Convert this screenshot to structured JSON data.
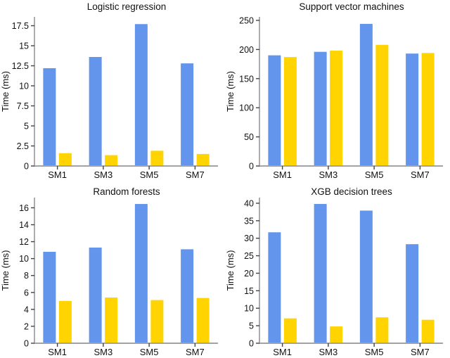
{
  "figure": {
    "background": "#ffffff",
    "axis_color": "#a3a3a3",
    "tick_color": "#444444",
    "text_color": "#111111",
    "series_colors": {
      "blue": "#6495ED",
      "yellow": "#FFD400"
    }
  },
  "chart_data": [
    {
      "type": "bar",
      "title": "Logistic regression",
      "xlabel": "",
      "ylabel": "Time (ms)",
      "categories": [
        "SM1",
        "SM3",
        "SM5",
        "SM7"
      ],
      "series": [
        {
          "name": "blue",
          "color": "#6495ED",
          "values": [
            12.2,
            13.6,
            17.7,
            12.8
          ]
        },
        {
          "name": "yellow",
          "color": "#FFD400",
          "values": [
            1.6,
            1.35,
            1.9,
            1.5
          ]
        }
      ],
      "ylim": [
        0,
        18.6
      ],
      "yticks": [
        0,
        2.5,
        5,
        7.5,
        10,
        12.5,
        15,
        17.5
      ],
      "grid": false,
      "legend": "none"
    },
    {
      "type": "bar",
      "title": "Support vector machines",
      "xlabel": "",
      "ylabel": "Time (ms)",
      "categories": [
        "SM1",
        "SM3",
        "SM5",
        "SM7"
      ],
      "series": [
        {
          "name": "blue",
          "color": "#6495ED",
          "values": [
            190,
            196,
            244,
            193
          ]
        },
        {
          "name": "yellow",
          "color": "#FFD400",
          "values": [
            187,
            198,
            208,
            194
          ]
        }
      ],
      "ylim": [
        0,
        256
      ],
      "yticks": [
        0,
        50,
        100,
        150,
        200,
        250
      ],
      "grid": false,
      "legend": "none"
    },
    {
      "type": "bar",
      "title": "Random forests",
      "xlabel": "",
      "ylabel": "Time (ms)",
      "categories": [
        "SM1",
        "SM3",
        "SM5",
        "SM7"
      ],
      "series": [
        {
          "name": "blue",
          "color": "#6495ED",
          "values": [
            10.8,
            11.3,
            16.45,
            11.1
          ]
        },
        {
          "name": "yellow",
          "color": "#FFD400",
          "values": [
            5.0,
            5.4,
            5.1,
            5.35
          ]
        }
      ],
      "ylim": [
        0,
        17.2
      ],
      "yticks": [
        0,
        2,
        4,
        6,
        8,
        10,
        12,
        14,
        16
      ],
      "grid": false,
      "legend": "none"
    },
    {
      "type": "bar",
      "title": "XGB decision trees",
      "xlabel": "",
      "ylabel": "Time (ms)",
      "categories": [
        "SM1",
        "SM3",
        "SM5",
        "SM7"
      ],
      "series": [
        {
          "name": "blue",
          "color": "#6495ED",
          "values": [
            31.7,
            39.8,
            37.9,
            28.3
          ]
        },
        {
          "name": "yellow",
          "color": "#FFD400",
          "values": [
            7.1,
            4.8,
            7.4,
            6.7
          ]
        }
      ],
      "ylim": [
        0,
        41.6
      ],
      "yticks": [
        0,
        5,
        10,
        15,
        20,
        25,
        30,
        35,
        40
      ],
      "grid": false,
      "legend": "none"
    }
  ]
}
